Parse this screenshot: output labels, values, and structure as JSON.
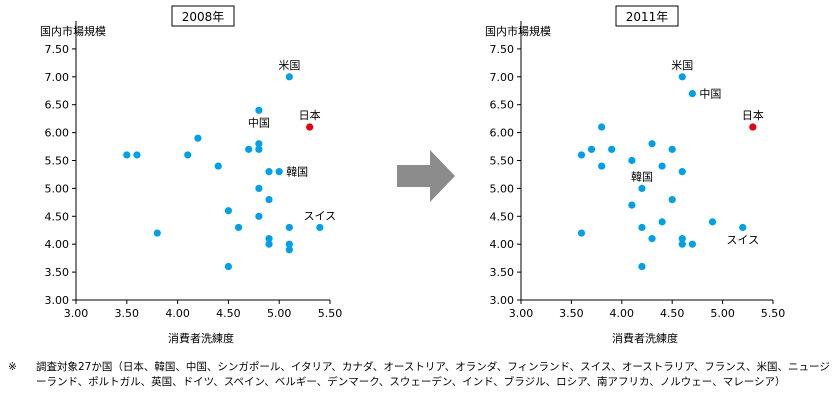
{
  "colors": {
    "point": "#00a0e9",
    "japan": "#e60012",
    "axis": "#000000",
    "arrow": "#8c8c8c"
  },
  "arrow_icon": "right-arrow-icon",
  "chart_data": [
    {
      "type": "scatter",
      "title": "2008年",
      "xlabel": "消費者洗練度",
      "ylabel": "国内市場規模",
      "xlim": [
        3.0,
        5.5
      ],
      "ylim": [
        3.0,
        8.0
      ],
      "xticks": [
        "3.00",
        "3.50",
        "4.00",
        "4.50",
        "5.00",
        "5.50"
      ],
      "yticks": [
        "3.00",
        "3.50",
        "4.00",
        "4.50",
        "5.00",
        "5.50",
        "6.00",
        "6.50",
        "7.00",
        "7.50"
      ],
      "grid": false,
      "points": [
        {
          "x": 3.5,
          "y": 5.6
        },
        {
          "x": 3.6,
          "y": 5.6
        },
        {
          "x": 3.8,
          "y": 4.2
        },
        {
          "x": 4.1,
          "y": 5.6
        },
        {
          "x": 4.2,
          "y": 5.9
        },
        {
          "x": 4.4,
          "y": 5.4
        },
        {
          "x": 4.5,
          "y": 4.6
        },
        {
          "x": 4.5,
          "y": 3.6
        },
        {
          "x": 4.6,
          "y": 4.3
        },
        {
          "x": 4.7,
          "y": 5.7
        },
        {
          "x": 4.8,
          "y": 6.4
        },
        {
          "x": 4.8,
          "y": 5.8
        },
        {
          "x": 4.8,
          "y": 5.7
        },
        {
          "x": 4.8,
          "y": 5.0
        },
        {
          "x": 4.8,
          "y": 4.5
        },
        {
          "x": 4.9,
          "y": 5.3
        },
        {
          "x": 4.9,
          "y": 4.8
        },
        {
          "x": 4.9,
          "y": 4.1
        },
        {
          "x": 4.9,
          "y": 4.0
        },
        {
          "x": 5.0,
          "y": 5.3
        },
        {
          "x": 5.1,
          "y": 7.0
        },
        {
          "x": 5.1,
          "y": 4.3
        },
        {
          "x": 5.1,
          "y": 4.0
        },
        {
          "x": 5.1,
          "y": 3.9
        },
        {
          "x": 5.3,
          "y": 6.1,
          "highlight": true
        },
        {
          "x": 5.4,
          "y": 4.3
        }
      ],
      "annotations": [
        {
          "text": "米国",
          "x": 5.1,
          "y": 7.0,
          "pos": "above"
        },
        {
          "text": "中国",
          "x": 4.8,
          "y": 6.4,
          "pos": "below"
        },
        {
          "text": "日本",
          "x": 5.3,
          "y": 6.1,
          "pos": "above"
        },
        {
          "text": "韓国",
          "x": 5.0,
          "y": 5.3,
          "pos": "right"
        },
        {
          "text": "スイス",
          "x": 5.4,
          "y": 4.3,
          "pos": "above"
        }
      ]
    },
    {
      "type": "scatter",
      "title": "2011年",
      "xlabel": "消費者洗練度",
      "ylabel": "国内市場規模",
      "xlim": [
        3.0,
        5.5
      ],
      "ylim": [
        3.0,
        8.0
      ],
      "xticks": [
        "3.00",
        "3.50",
        "4.00",
        "4.50",
        "5.00",
        "5.50"
      ],
      "yticks": [
        "3.00",
        "3.50",
        "4.00",
        "4.50",
        "5.00",
        "5.50",
        "6.00",
        "6.50",
        "7.00",
        "7.50"
      ],
      "grid": false,
      "points": [
        {
          "x": 3.6,
          "y": 5.6
        },
        {
          "x": 3.6,
          "y": 4.2
        },
        {
          "x": 3.7,
          "y": 5.7
        },
        {
          "x": 3.8,
          "y": 6.1
        },
        {
          "x": 3.8,
          "y": 5.4
        },
        {
          "x": 3.9,
          "y": 5.7
        },
        {
          "x": 4.1,
          "y": 5.5
        },
        {
          "x": 4.1,
          "y": 4.7
        },
        {
          "x": 4.2,
          "y": 5.0
        },
        {
          "x": 4.2,
          "y": 4.3
        },
        {
          "x": 4.2,
          "y": 3.6
        },
        {
          "x": 4.3,
          "y": 5.8
        },
        {
          "x": 4.3,
          "y": 4.1
        },
        {
          "x": 4.4,
          "y": 5.4
        },
        {
          "x": 4.4,
          "y": 4.4
        },
        {
          "x": 4.5,
          "y": 5.7
        },
        {
          "x": 4.5,
          "y": 4.8
        },
        {
          "x": 4.6,
          "y": 7.0
        },
        {
          "x": 4.6,
          "y": 5.3
        },
        {
          "x": 4.6,
          "y": 4.1
        },
        {
          "x": 4.6,
          "y": 4.0
        },
        {
          "x": 4.7,
          "y": 6.7
        },
        {
          "x": 4.7,
          "y": 4.0
        },
        {
          "x": 4.9,
          "y": 4.4
        },
        {
          "x": 5.2,
          "y": 4.3
        },
        {
          "x": 5.3,
          "y": 6.1,
          "highlight": true
        }
      ],
      "annotations": [
        {
          "text": "米国",
          "x": 4.6,
          "y": 7.0,
          "pos": "above"
        },
        {
          "text": "中国",
          "x": 4.7,
          "y": 6.7,
          "pos": "right"
        },
        {
          "text": "日本",
          "x": 5.3,
          "y": 6.1,
          "pos": "above"
        },
        {
          "text": "韓国",
          "x": 4.2,
          "y": 5.0,
          "pos": "above"
        },
        {
          "text": "スイス",
          "x": 5.2,
          "y": 4.3,
          "pos": "below"
        }
      ]
    }
  ],
  "footnote": {
    "mark": "※",
    "text": "調査対象27か国（日本、韓国、中国、シンガポール、イタリア、カナダ、オーストリア、オランダ、フィンランド、スイス、オーストラリア、フランス、米国、ニュージーランド、ポルトガル、英国、ドイツ、スペイン、ベルギー、デンマーク、スウェーデン、インド、ブラジル、ロシア、南アフリカ、ノルウェー、マレーシア）"
  }
}
